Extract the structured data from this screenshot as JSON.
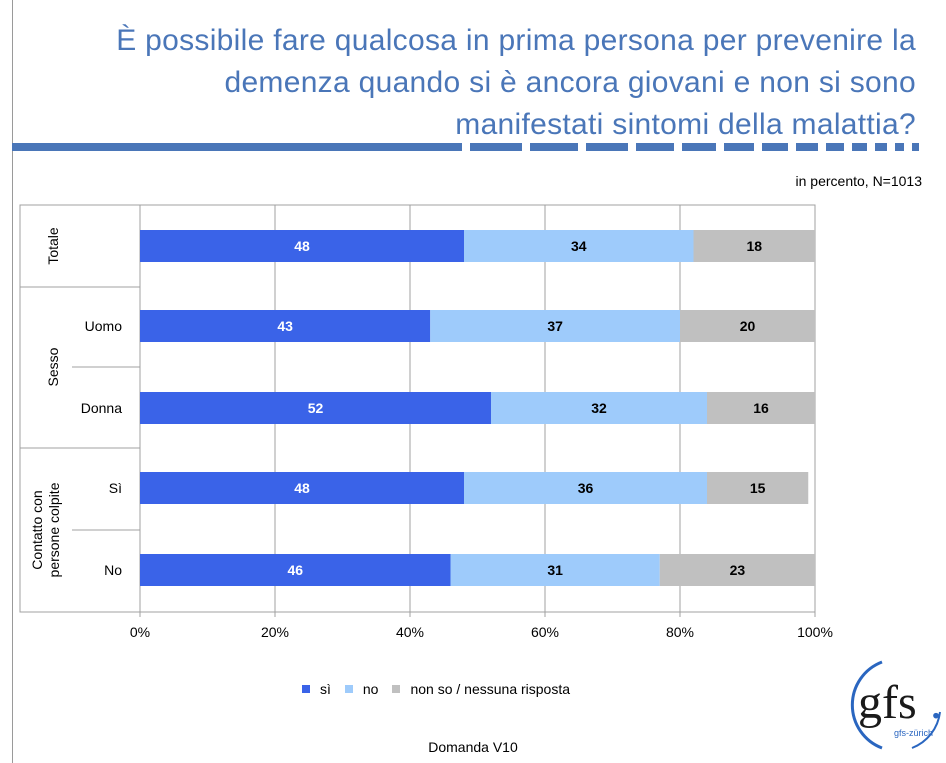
{
  "header": {
    "title_lines": [
      "È possibile fare qualcosa in prima persona per prevenire la",
      "demenza quando si è ancora giovani e non si sono",
      "manifestati sintomi della malattia?"
    ],
    "subtitle": "in percento, N=1013"
  },
  "chart_data": {
    "type": "bar",
    "orientation": "horizontal",
    "stacked": true,
    "categories": [
      "Totale",
      "Uomo",
      "Donna",
      "Sì",
      "No"
    ],
    "groups": [
      {
        "label": "Totale",
        "rows": [
          "Totale"
        ]
      },
      {
        "label": "Sesso",
        "rows": [
          "Uomo",
          "Donna"
        ]
      },
      {
        "label": "Contatto con persone colpite",
        "rows": [
          "Sì",
          "No"
        ]
      }
    ],
    "series": [
      {
        "name": "sì",
        "color": "#3a63e8",
        "values": [
          48,
          43,
          52,
          48,
          46
        ]
      },
      {
        "name": "no",
        "color": "#9ecbfb",
        "values": [
          34,
          37,
          32,
          36,
          31
        ]
      },
      {
        "name": "non so / nessuna risposta",
        "color": "#c0c0c0",
        "values": [
          18,
          20,
          16,
          15,
          23
        ]
      }
    ],
    "xlim": [
      0,
      100
    ],
    "xticks": [
      "0%",
      "20%",
      "40%",
      "60%",
      "80%",
      "100%"
    ],
    "grid": true,
    "legend_position": "bottom"
  },
  "legend": [
    {
      "label": "sì",
      "color": "#3a63e8"
    },
    {
      "label": "no",
      "color": "#9ecbfb"
    },
    {
      "label": "non so / nessuna risposta",
      "color": "#c0c0c0"
    }
  ],
  "footer": "Domanda V10",
  "logo": {
    "main": "gfs",
    "sub": "gfs-zürich"
  }
}
